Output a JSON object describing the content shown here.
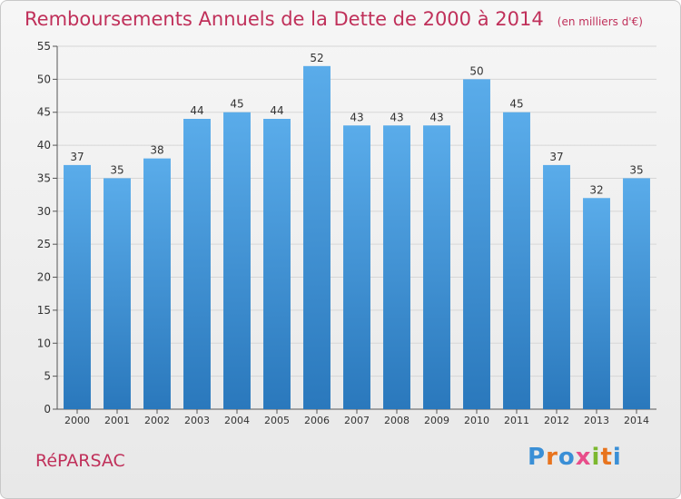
{
  "header": {
    "title": "Remboursements Annuels de la Dette de 2000 à 2014",
    "unit": "(en milliers d'€)"
  },
  "footer": {
    "commune": "RéPARSAC",
    "logo": "Proxiti"
  },
  "colors": {
    "title": "#c0305a",
    "bar_top": "#5aacea",
    "bar_bottom": "#2a78bc",
    "logo": [
      "#3a8fd6",
      "#e8741e",
      "#3a8fd6",
      "#e84d8a",
      "#7cb82f",
      "#e8741e",
      "#3a8fd6"
    ]
  },
  "chart_data": {
    "type": "bar",
    "title": "Remboursements Annuels de la Dette de 2000 à 2014",
    "categories": [
      "2000",
      "2001",
      "2002",
      "2003",
      "2004",
      "2005",
      "2006",
      "2007",
      "2008",
      "2009",
      "2010",
      "2011",
      "2012",
      "2013",
      "2014"
    ],
    "values": [
      37,
      35,
      38,
      44,
      45,
      44,
      52,
      43,
      43,
      43,
      50,
      45,
      37,
      32,
      35
    ],
    "ylim": [
      0,
      55
    ],
    "yticks": [
      0,
      5,
      10,
      15,
      20,
      25,
      30,
      35,
      40,
      45,
      50,
      55
    ],
    "grid": true,
    "data_labels": true
  }
}
